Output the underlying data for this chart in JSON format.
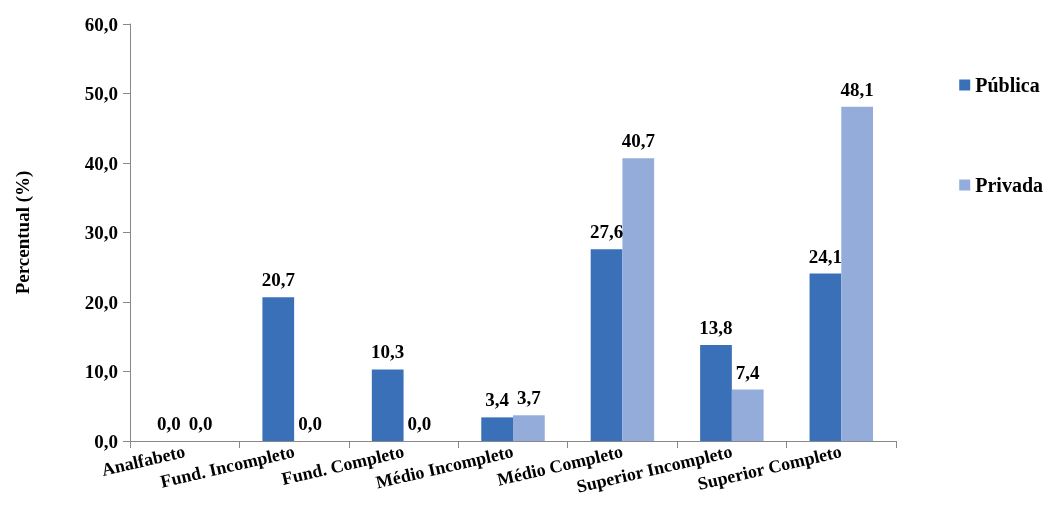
{
  "chart_data": {
    "type": "bar",
    "ylabel": "Percentual (%)",
    "categories": [
      "Analfabeto",
      "Fund. Incompleto",
      "Fund. Completo",
      "Médio Incompleto",
      "Médio Completo",
      "Superior Incompleto",
      "Superior Completo"
    ],
    "series": [
      {
        "name": "Pública",
        "color": "#3a70b8",
        "values": [
          0.0,
          20.7,
          10.3,
          3.4,
          27.6,
          13.8,
          24.1
        ],
        "value_labels": [
          "0,0",
          "20,7",
          "10,3",
          "3,4",
          "27,6",
          "13,8",
          "24,1"
        ]
      },
      {
        "name": "Privada",
        "color": "#94acd9",
        "values": [
          0.0,
          0.0,
          0.0,
          3.7,
          40.7,
          7.4,
          48.1
        ],
        "value_labels": [
          "0,0",
          "0,0",
          "0,0",
          "3,7",
          "40,7",
          "7,4",
          "48,1"
        ]
      }
    ],
    "ylim": [
      0,
      60
    ],
    "yticks": [
      {
        "value": 0,
        "label": "0,0"
      },
      {
        "value": 10,
        "label": "10,0"
      },
      {
        "value": 20,
        "label": "20,0"
      },
      {
        "value": 30,
        "label": "30,0"
      },
      {
        "value": 40,
        "label": "40,0"
      },
      {
        "value": 50,
        "label": "50,0"
      },
      {
        "value": 60,
        "label": "60,0"
      }
    ],
    "grid": false,
    "legend": "right"
  }
}
